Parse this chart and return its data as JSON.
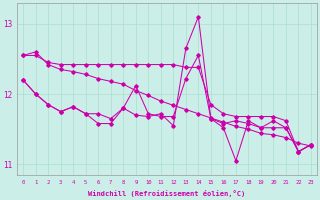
{
  "xlabel": "Windchill (Refroidissement éolien,°C)",
  "background_color": "#cceee8",
  "grid_color": "#aaddcc",
  "line_color": "#cc00aa",
  "x": [
    0,
    1,
    2,
    3,
    4,
    5,
    6,
    7,
    8,
    9,
    10,
    11,
    12,
    13,
    14,
    15,
    16,
    17,
    18,
    19,
    20,
    21,
    22,
    23
  ],
  "line1": [
    12.55,
    12.55,
    12.45,
    12.42,
    12.42,
    12.42,
    12.42,
    12.42,
    12.42,
    12.42,
    12.42,
    12.42,
    12.42,
    12.38,
    12.38,
    11.85,
    11.72,
    11.68,
    11.68,
    11.68,
    11.68,
    11.62,
    11.18,
    11.28
  ],
  "line2": [
    12.2,
    12.0,
    11.85,
    11.75,
    11.82,
    11.72,
    11.72,
    11.65,
    11.8,
    11.7,
    11.68,
    11.72,
    11.55,
    12.65,
    13.1,
    11.65,
    11.52,
    11.05,
    11.62,
    11.52,
    11.52,
    11.52,
    11.18,
    11.28
  ],
  "line3": [
    12.2,
    12.0,
    11.85,
    11.75,
    11.82,
    11.72,
    11.58,
    11.58,
    11.8,
    12.12,
    11.72,
    11.68,
    11.68,
    12.22,
    12.55,
    11.65,
    11.58,
    11.62,
    11.58,
    11.52,
    11.62,
    11.52,
    11.18,
    11.28
  ],
  "line4": [
    12.55,
    12.6,
    12.42,
    12.35,
    12.32,
    12.28,
    12.22,
    12.18,
    12.14,
    12.05,
    11.98,
    11.9,
    11.84,
    11.78,
    11.72,
    11.66,
    11.6,
    11.54,
    11.5,
    11.44,
    11.42,
    11.38,
    11.3,
    11.26
  ],
  "ylim": [
    10.85,
    13.3
  ],
  "yticks": [
    11,
    12,
    13
  ],
  "xticks": [
    0,
    1,
    2,
    3,
    4,
    5,
    6,
    7,
    8,
    9,
    10,
    11,
    12,
    13,
    14,
    15,
    16,
    17,
    18,
    19,
    20,
    21,
    22,
    23
  ]
}
